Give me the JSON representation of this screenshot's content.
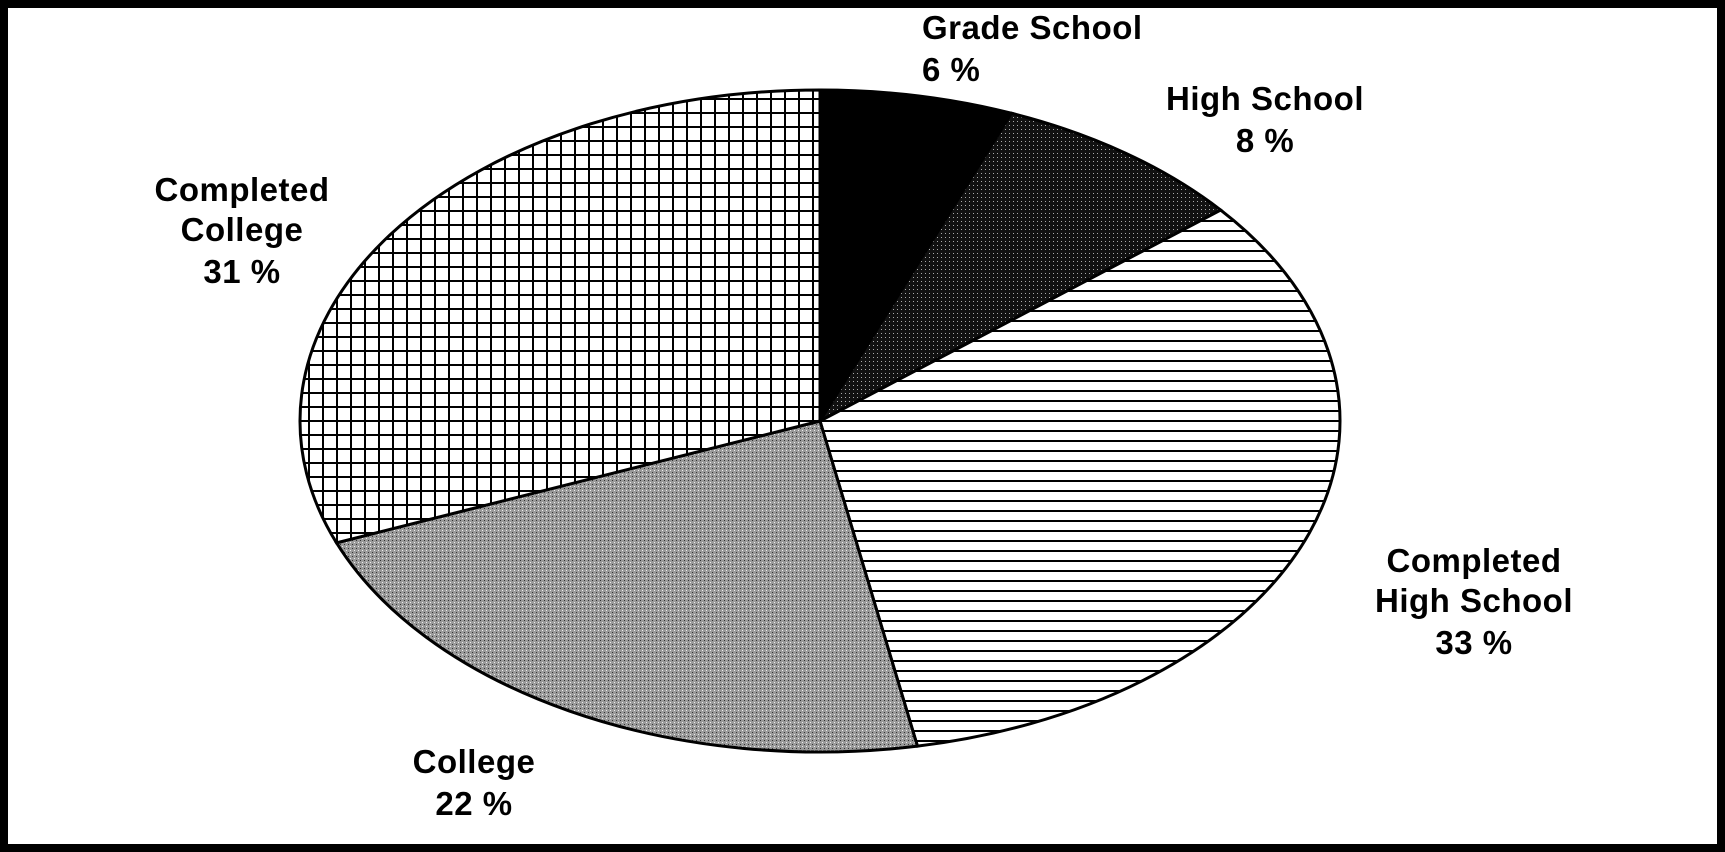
{
  "chart_data": {
    "type": "pie",
    "categories": [
      "Grade School",
      "High School",
      "Completed High School",
      "College",
      "Completed College"
    ],
    "values": [
      6,
      8,
      33,
      22,
      31
    ],
    "value_labels": [
      "6 %",
      "8 %",
      "33 %",
      "22 %",
      "31 %"
    ]
  }
}
